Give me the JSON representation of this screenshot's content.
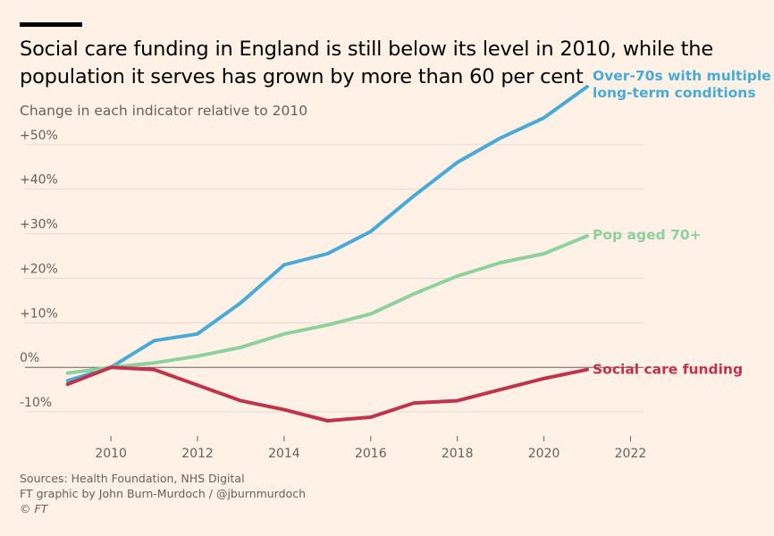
{
  "header": {
    "title": "Social care funding in England is still below its level in 2010, while the population it serves has grown by more than 60 per cent",
    "subtitle": "Change in each indicator relative to 2010"
  },
  "footer": {
    "sources": "Sources: Health Foundation, NHS Digital",
    "credit": "FT graphic by John Burn-Murdoch / @jburnmurdoch",
    "copyright": "© FT"
  },
  "colors": {
    "background": "#fff1e5",
    "over70_multiple": "#4aaad6",
    "pop70": "#8fd19e",
    "social_care": "#c0334d",
    "grid": "#e6d9ce",
    "zero_line": "#66605c"
  },
  "chart_data": {
    "type": "line",
    "title": "Social care funding in England is still below its level in 2010, while the population it serves has grown by more than 60 per cent",
    "subtitle": "Change in each indicator relative to 2010",
    "xlabel": "",
    "ylabel": "",
    "xlim": [
      2008.8,
      2022.3
    ],
    "ylim": [
      -14,
      60
    ],
    "grid": true,
    "x_ticks": [
      2010,
      2012,
      2014,
      2016,
      2018,
      2020,
      2022
    ],
    "y_ticks": [
      -10,
      0,
      10,
      20,
      30,
      40,
      50
    ],
    "y_tick_labels": [
      "-10%",
      "0%",
      "+10%",
      "+20%",
      "+30%",
      "+40%",
      "+50%"
    ],
    "x": [
      2009,
      2010,
      2011,
      2012,
      2013,
      2014,
      2015,
      2016,
      2017,
      2018,
      2019,
      2020,
      2021
    ],
    "series": [
      {
        "name": "Over-70s with multiple long-term conditions",
        "label_lines": [
          "Over-70s with multiple",
          "long-term conditions"
        ],
        "color": "#4aaad6",
        "values": [
          -3,
          0,
          6,
          7.5,
          14.5,
          23,
          25.5,
          30.5,
          38.5,
          46,
          51.5,
          56,
          63
        ]
      },
      {
        "name": "Pop aged 70+",
        "label_lines": [
          "Pop aged 70+"
        ],
        "color": "#8fd19e",
        "values": [
          -1.3,
          0,
          1,
          2.5,
          4.5,
          7.5,
          9.5,
          12,
          16.5,
          20.5,
          23.5,
          25.5,
          29.5
        ]
      },
      {
        "name": "Social care funding",
        "label_lines": [
          "Social care funding"
        ],
        "color": "#c0334d",
        "values": [
          -3.8,
          0,
          -0.5,
          -4,
          -7.5,
          -9.5,
          -12,
          -11.2,
          -8,
          -7.5,
          -5,
          -2.5,
          -0.5
        ]
      }
    ]
  }
}
